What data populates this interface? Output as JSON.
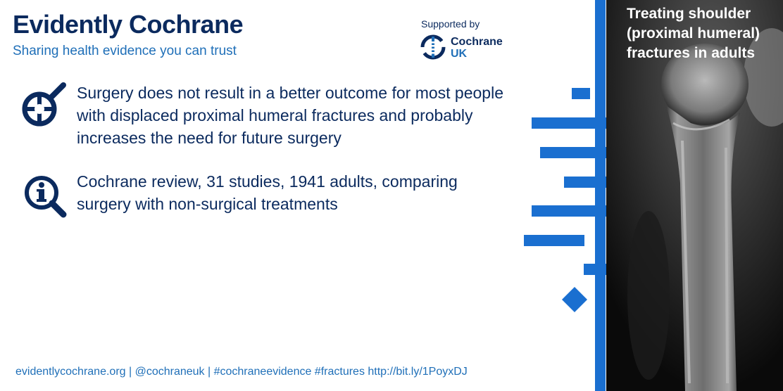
{
  "header": {
    "title": "Evidently Cochrane",
    "tagline": "Sharing health evidence you can trust"
  },
  "sponsor": {
    "label": "Supported by",
    "name_line1": "Cochrane",
    "name_line2": "UK",
    "logo_icon": "cochrane-logo-icon"
  },
  "messages": [
    {
      "icon": "magnifier-crosshair-icon",
      "text": "Surgery does not result in a better outcome for most people with displaced proximal humeral fractures and probably increases the need for future surgery"
    },
    {
      "icon": "magnifier-info-icon",
      "text": "Cochrane review, 31 studies, 1941 adults, comparing surgery with non-surgical treatments"
    }
  ],
  "footer": {
    "text": "evidentlycochrane.org | @cochraneuk | #cochraneevidence #fractures http://bit.ly/1PoyxDJ"
  },
  "side_panel": {
    "title_lines": [
      "Treating shoulder",
      "(proximal humeral)",
      "fractures in adults"
    ],
    "image": "shoulder-xray-image"
  },
  "colors": {
    "navy": "#0b2a5e",
    "blue": "#1f6fb8",
    "forest_blue": "#1a6fd0",
    "panel_bg": "#0a0a0a"
  }
}
